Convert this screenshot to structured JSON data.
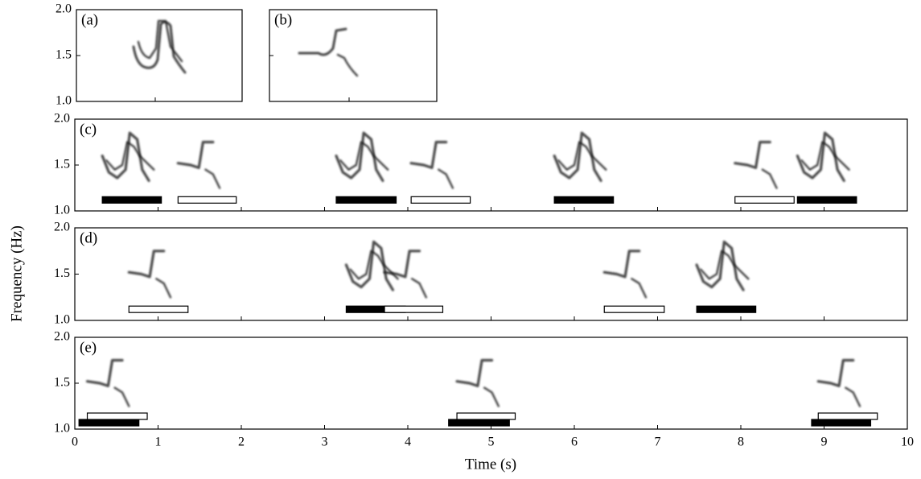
{
  "figure": {
    "y_label": "Frequency (Hz)",
    "x_label": "Time (s)",
    "xlim": [
      0,
      10
    ],
    "xticks": [
      0,
      1,
      2,
      3,
      4,
      5,
      6,
      7,
      8,
      9,
      10
    ],
    "ylim": [
      1,
      2
    ],
    "yticks": [
      {
        "value": 1,
        "label": "1.0"
      },
      1.5,
      {
        "value": 2,
        "label": "2.0"
      }
    ],
    "panels": [
      {
        "label": "(a)"
      },
      {
        "label": "(b)"
      },
      {
        "label": "(c)",
        "bars": [
          {
            "start": 0.33,
            "end": 1.04,
            "filled": true
          },
          {
            "start": 1.24,
            "end": 1.94,
            "filled": false
          },
          {
            "start": 3.14,
            "end": 3.86,
            "filled": true
          },
          {
            "start": 4.04,
            "end": 4.75,
            "filled": false
          },
          {
            "start": 5.76,
            "end": 6.47,
            "filled": true
          },
          {
            "start": 7.93,
            "end": 8.64,
            "filled": false
          },
          {
            "start": 8.68,
            "end": 9.39,
            "filled": true
          }
        ]
      },
      {
        "label": "(d)",
        "bars": [
          {
            "start": 0.65,
            "end": 1.36,
            "filled": false
          },
          {
            "start": 3.26,
            "end": 3.97,
            "filled": true
          },
          {
            "start": 3.72,
            "end": 4.42,
            "filled": false
          },
          {
            "start": 6.36,
            "end": 7.08,
            "filled": false
          },
          {
            "start": 7.47,
            "end": 8.18,
            "filled": true
          }
        ]
      },
      {
        "label": "(e)",
        "bars": [
          {
            "start": 0.05,
            "end": 0.77,
            "filled": true
          },
          {
            "start": 0.15,
            "end": 0.87,
            "filled": false
          },
          {
            "start": 4.49,
            "end": 5.22,
            "filled": true
          },
          {
            "start": 4.59,
            "end": 5.29,
            "filled": false
          },
          {
            "start": 8.85,
            "end": 9.56,
            "filled": true
          },
          {
            "start": 8.93,
            "end": 9.64,
            "filled": false
          }
        ]
      }
    ]
  }
}
